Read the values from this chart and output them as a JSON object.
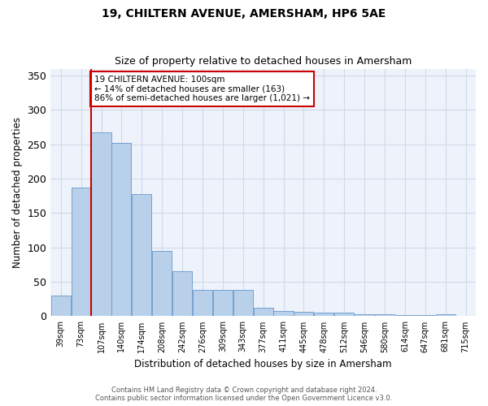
{
  "title": "19, CHILTERN AVENUE, AMERSHAM, HP6 5AE",
  "subtitle": "Size of property relative to detached houses in Amersham",
  "xlabel": "Distribution of detached houses by size in Amersham",
  "ylabel": "Number of detached properties",
  "bar_values": [
    30,
    187,
    267,
    252,
    178,
    95,
    65,
    38,
    38,
    38,
    12,
    8,
    7,
    5,
    5,
    3,
    3,
    2,
    2,
    3
  ],
  "bin_labels": [
    "39sqm",
    "73sqm",
    "107sqm",
    "140sqm",
    "174sqm",
    "208sqm",
    "242sqm",
    "276sqm",
    "309sqm",
    "343sqm",
    "377sqm",
    "411sqm",
    "445sqm",
    "478sqm",
    "512sqm",
    "546sqm",
    "580sqm",
    "614sqm",
    "647sqm",
    "681sqm",
    "715sqm"
  ],
  "bar_color": "#b8d0ea",
  "bar_edge_color": "#6699cc",
  "grid_color": "#d0d8e8",
  "bg_color": "#eef2fa",
  "vline_color": "#cc0000",
  "annotation_text": "19 CHILTERN AVENUE: 100sqm\n← 14% of detached houses are smaller (163)\n86% of semi-detached houses are larger (1,021) →",
  "annotation_box_color": "#ffffff",
  "annotation_box_edge": "#cc0000",
  "ylim": [
    0,
    360
  ],
  "yticks": [
    0,
    50,
    100,
    150,
    200,
    250,
    300,
    350
  ],
  "footer1": "Contains HM Land Registry data © Crown copyright and database right 2024.",
  "footer2": "Contains public sector information licensed under the Open Government Licence v3.0."
}
